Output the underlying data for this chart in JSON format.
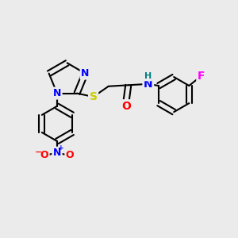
{
  "bg_color": "#ebebeb",
  "bond_color": "#000000",
  "bond_width": 1.5,
  "atom_colors": {
    "N": "#0000ff",
    "O": "#ff0000",
    "S": "#cccc00",
    "F": "#ff00ff",
    "H": "#008080",
    "C": "#000000"
  },
  "font_size": 9,
  "fig_width": 3.0,
  "fig_height": 3.0,
  "dpi": 100,
  "xlim": [
    0,
    10
  ],
  "ylim": [
    0,
    10
  ]
}
